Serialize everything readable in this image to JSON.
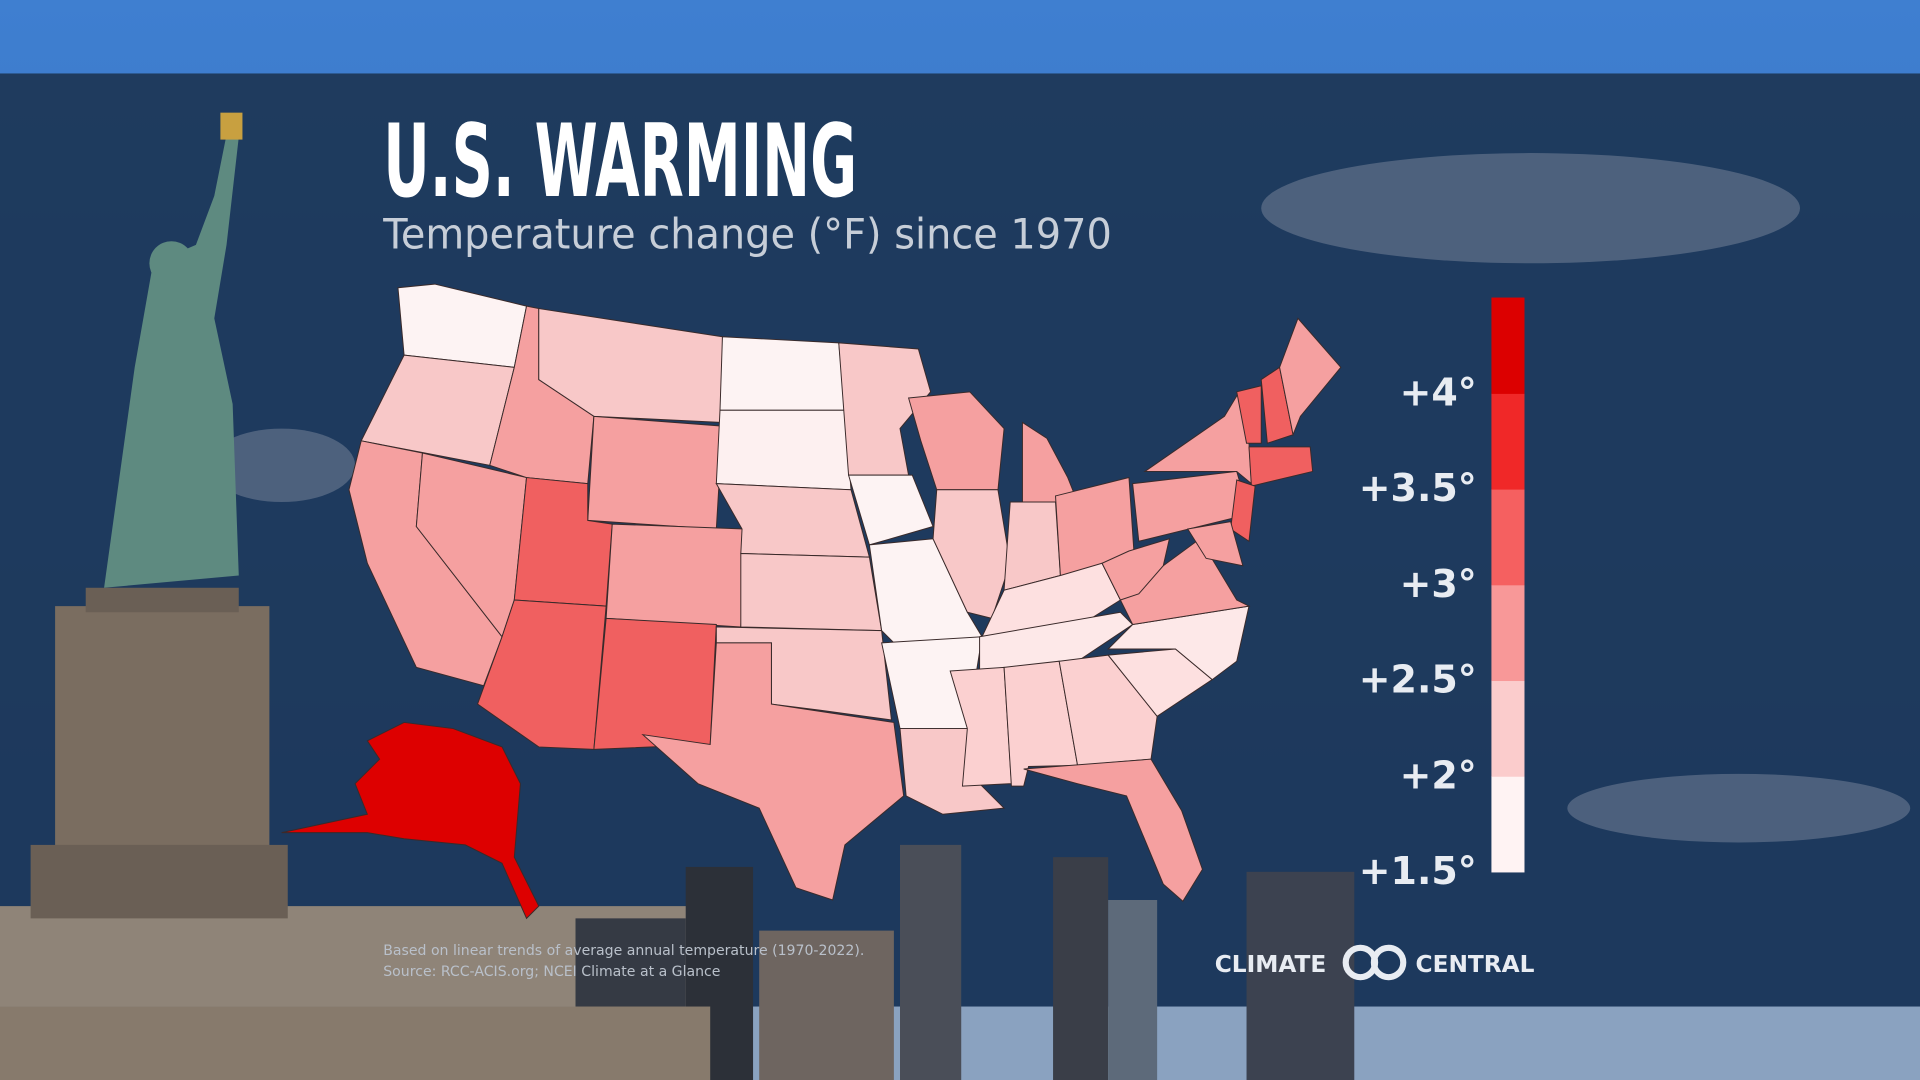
{
  "header": {
    "title": "U.S. WARMING",
    "subtitle": "Temperature change (°F) since 1970"
  },
  "legend": {
    "colors": [
      "#fff3f3",
      "#fbcccc",
      "#f89898",
      "#f56060",
      "#f02828",
      "#dc0000"
    ],
    "ticks": [
      {
        "value": 1.5,
        "label": "+1.5°"
      },
      {
        "value": 2,
        "label": "+2°"
      },
      {
        "value": 2.5,
        "label": "+2.5°"
      },
      {
        "value": 3,
        "label": "+3°"
      },
      {
        "value": 3.5,
        "label": "+3.5°"
      },
      {
        "value": 4,
        "label": "+4°"
      }
    ]
  },
  "footnote": [
    "Based on linear trends of average annual temperature (1970-2022).",
    "Source: RCC-ACIS.org; NCEI Climate at a Glance"
  ],
  "logo": {
    "left": "CLIMATE",
    "right": "CENTRAL"
  }
}
